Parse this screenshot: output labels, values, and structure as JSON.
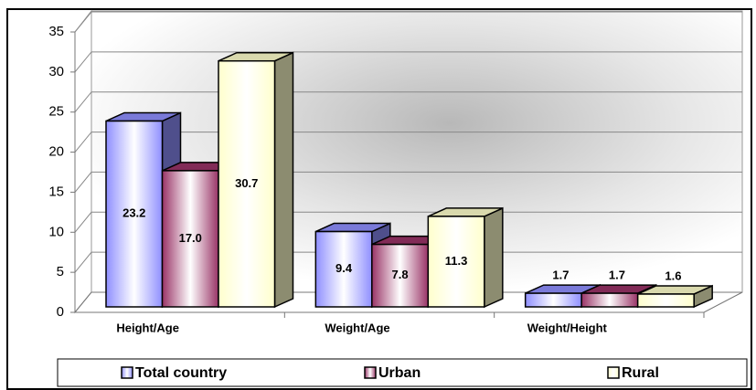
{
  "chart_data": {
    "type": "bar3d",
    "categories": [
      "Height/Age",
      "Weight/Age",
      "Weight/Height"
    ],
    "series": [
      {
        "name": "Total country",
        "color": "#8f8fff",
        "values": [
          23.2,
          9.4,
          1.7
        ],
        "value_labels": [
          "23.2",
          "9.4",
          "1.7"
        ]
      },
      {
        "name": "Urban",
        "color": "#993366",
        "values": [
          17.0,
          7.8,
          1.7
        ],
        "value_labels": [
          "17.0",
          "7.8",
          "1.7"
        ]
      },
      {
        "name": "Rural",
        "color": "#ffffcc",
        "values": [
          30.7,
          11.3,
          1.6
        ],
        "value_labels": [
          "30.7",
          "11.3",
          "1.6"
        ]
      }
    ],
    "ylim": [
      0,
      35
    ],
    "yticks": [
      0,
      5,
      10,
      15,
      20,
      25,
      30,
      35
    ],
    "grid": true,
    "legend": "bottom"
  }
}
